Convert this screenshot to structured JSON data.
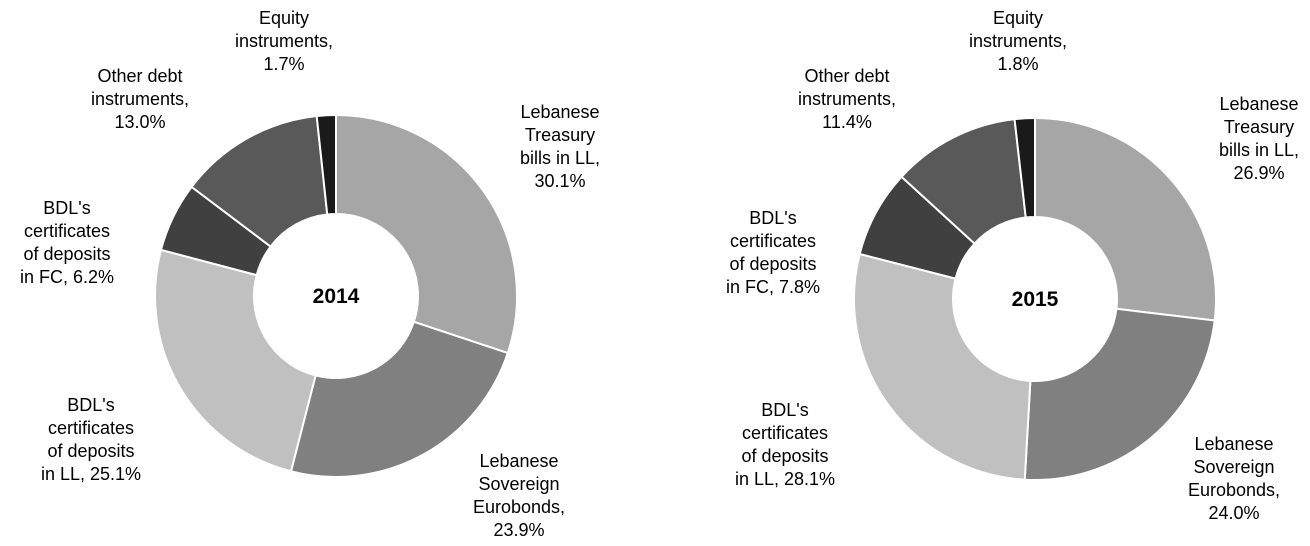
{
  "chart_data": [
    {
      "type": "donut",
      "title": "2014",
      "slices": [
        {
          "label": [
            "Lebanese",
            "Treasury",
            "bills in LL,",
            "30.1%"
          ],
          "value": 30.1,
          "color": "#a6a6a6"
        },
        {
          "label": [
            "Lebanese",
            "Sovereign",
            "Eurobonds,",
            "23.9%"
          ],
          "value": 23.9,
          "color": "#808080"
        },
        {
          "label": [
            "BDL's",
            "certificates",
            "of deposits",
            "in LL, 25.1%"
          ],
          "value": 25.1,
          "color": "#c0c0c0"
        },
        {
          "label": [
            "BDL's",
            "certificates",
            "of deposits",
            "in FC, 6.2%"
          ],
          "value": 6.2,
          "color": "#404040"
        },
        {
          "label": [
            "Other debt",
            "instruments,",
            "13.0%"
          ],
          "value": 13.0,
          "color": "#595959"
        },
        {
          "label": [
            "Equity",
            "instruments,",
            "1.7%"
          ],
          "value": 1.7,
          "color": "#1a1a1a"
        }
      ]
    },
    {
      "type": "donut",
      "title": "2015",
      "slices": [
        {
          "label": [
            "Lebanese",
            "Treasury",
            "bills in LL,",
            "26.9%"
          ],
          "value": 26.9,
          "color": "#a6a6a6"
        },
        {
          "label": [
            "Lebanese",
            "Sovereign",
            "Eurobonds,",
            "24.0%"
          ],
          "value": 24.0,
          "color": "#808080"
        },
        {
          "label": [
            "BDL's",
            "certificates",
            "of deposits",
            "in LL, 28.1%"
          ],
          "value": 28.1,
          "color": "#c0c0c0"
        },
        {
          "label": [
            "BDL's",
            "certificates",
            "of deposits",
            "in FC, 7.8%"
          ],
          "value": 7.8,
          "color": "#404040"
        },
        {
          "label": [
            "Other debt",
            "instruments,",
            "11.4%"
          ],
          "value": 11.4,
          "color": "#595959"
        },
        {
          "label": [
            "Equity",
            "instruments,",
            "1.8%"
          ],
          "value": 1.8,
          "color": "#1a1a1a"
        }
      ]
    }
  ]
}
